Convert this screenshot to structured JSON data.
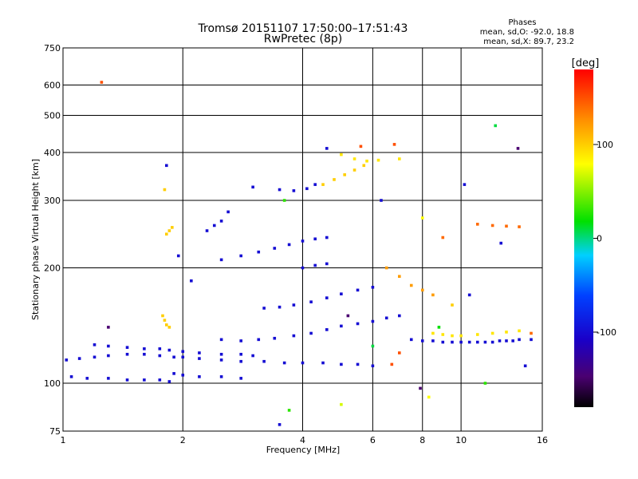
{
  "chart_data": {
    "type": "scatter",
    "title": "Tromsø 20151107 17:50:00–17:51:43",
    "subtitle": "RwPretec (8p)",
    "xlabel": "Frequency [MHz]",
    "ylabel": "Stationary phase Virtual Height [km]",
    "x_scale": "log",
    "y_scale": "log",
    "xlim": [
      1,
      16
    ],
    "ylim": [
      75,
      750
    ],
    "x_ticks": [
      1,
      2,
      4,
      6,
      8,
      10,
      16
    ],
    "y_ticks": [
      75,
      100,
      200,
      300,
      400,
      500,
      600,
      750
    ],
    "grid": true,
    "phase_stats": {
      "title": "Phases",
      "line_o": "mean, sd,O: -92.0, 18.8",
      "line_x": "mean, sd,X:  89.7, 23.2"
    },
    "colorbar": {
      "label": "[deg]",
      "range": [
        -180,
        180
      ],
      "ticks": [
        100,
        0,
        -100
      ],
      "colormap": "rainbow: black-purple-blue-cyan-green-yellow-orange-red"
    },
    "traces": [
      {
        "name": "",
        "phase": -100,
        "x": [
          1.02,
          1.1,
          1.2,
          1.3,
          1.45,
          1.6,
          1.75,
          1.9,
          2.0,
          2.2,
          2.5,
          2.8,
          3.2,
          3.6,
          4.0,
          4.5,
          5.0,
          5.5,
          6.0
        ],
        "y": [
          115,
          116,
          117,
          118,
          119,
          119,
          118,
          117,
          117,
          116,
          115,
          114,
          114,
          113,
          113,
          113,
          112,
          112,
          111
        ]
      },
      {
        "name": "",
        "phase": -100,
        "x": [
          1.05,
          1.15,
          1.3,
          1.45,
          1.6,
          1.75,
          1.85
        ],
        "y": [
          104,
          103,
          103,
          102,
          102,
          102,
          101
        ]
      },
      {
        "name": "",
        "phase": -100,
        "x": [
          1.2,
          1.3,
          1.45,
          1.6,
          1.75,
          1.85,
          2.0,
          2.2,
          2.5,
          2.8,
          3.0
        ],
        "y": [
          126,
          125,
          124,
          123,
          123,
          122,
          121,
          120,
          119,
          119,
          118
        ]
      },
      {
        "name": "",
        "phase": -100,
        "x": [
          1.9,
          2.0,
          2.2,
          2.5,
          2.8
        ],
        "y": [
          106,
          105,
          104,
          104,
          103
        ]
      },
      {
        "name": "",
        "phase": -100,
        "x": [
          2.5,
          2.8,
          3.1,
          3.4,
          3.8,
          4.2,
          4.6,
          5.0,
          5.5,
          6.0,
          6.5,
          7.0
        ],
        "y": [
          130,
          129,
          130,
          131,
          133,
          135,
          138,
          141,
          143,
          145,
          148,
          150
        ]
      },
      {
        "name": "",
        "phase": -100,
        "x": [
          3.2,
          3.5,
          3.8,
          4.2,
          4.6,
          5.0,
          5.5,
          6.0
        ],
        "y": [
          157,
          158,
          160,
          163,
          167,
          171,
          175,
          178
        ]
      },
      {
        "name": "",
        "phase": -100,
        "x": [
          2.5,
          2.8,
          3.1,
          3.4,
          3.7,
          4.0,
          4.3,
          4.6
        ],
        "y": [
          210,
          215,
          220,
          225,
          230,
          235,
          238,
          240
        ]
      },
      {
        "name": "",
        "phase": -100,
        "x": [
          4.0,
          4.3,
          4.6
        ],
        "y": [
          200,
          203,
          205
        ]
      },
      {
        "name": "",
        "phase": -100,
        "x": [
          3.5,
          3.8,
          4.1,
          4.3
        ],
        "y": [
          320,
          318,
          322,
          330
        ]
      },
      {
        "name": "",
        "phase": -100,
        "x": [
          7.5,
          8.0,
          8.5,
          9.0,
          9.5,
          10.0,
          10.5,
          11.0,
          11.5,
          12.0,
          12.5,
          13.0,
          13.5,
          14.0,
          15.0
        ],
        "y": [
          130,
          129,
          129,
          128,
          128,
          128,
          128,
          128,
          128,
          128,
          129,
          129,
          129,
          130,
          130
        ]
      },
      {
        "name": "",
        "phase": -100,
        "x": [
          2.3,
          2.4,
          2.5
        ],
        "y": [
          250,
          258,
          265
        ]
      },
      {
        "name": "",
        "phase": 100,
        "x": [
          4.5,
          4.8,
          5.1,
          5.4,
          5.7
        ],
        "y": [
          330,
          340,
          350,
          360,
          370
        ]
      },
      {
        "name": "",
        "phase": 100,
        "x": [
          1.78,
          1.8,
          1.82,
          1.85
        ],
        "y": [
          150,
          146,
          142,
          140
        ]
      },
      {
        "name": "",
        "phase": 100,
        "x": [
          1.82,
          1.85,
          1.88
        ],
        "y": [
          245,
          250,
          255
        ]
      },
      {
        "name": "",
        "phase": 120,
        "x": [
          6.5,
          7.0,
          7.5,
          8.0,
          8.5
        ],
        "y": [
          200,
          190,
          180,
          175,
          170
        ]
      },
      {
        "name": "",
        "phase": 90,
        "x": [
          8.5,
          9.0,
          9.5,
          10.0,
          11.0,
          12.0,
          13.0,
          14.0
        ],
        "y": [
          135,
          134,
          133,
          133,
          134,
          135,
          136,
          137
        ]
      },
      {
        "name": "",
        "phase": 140,
        "x": [
          11.0,
          12.0,
          13.0,
          14.0
        ],
        "y": [
          260,
          258,
          257,
          256
        ]
      },
      {
        "name": "",
        "phase": 90,
        "x": [
          5.0,
          5.4,
          5.8,
          6.2,
          7.0
        ],
        "y": [
          395,
          385,
          380,
          382,
          385
        ]
      }
    ],
    "scatter_points": [
      {
        "x": 1.25,
        "y": 610,
        "phase": 150
      },
      {
        "x": 1.82,
        "y": 370,
        "phase": -100
      },
      {
        "x": 3.0,
        "y": 325,
        "phase": -100
      },
      {
        "x": 13.9,
        "y": 410,
        "phase": -150
      },
      {
        "x": 12.2,
        "y": 470,
        "phase": 10
      },
      {
        "x": 10.2,
        "y": 330,
        "phase": -100
      },
      {
        "x": 4.6,
        "y": 410,
        "phase": -100
      },
      {
        "x": 5.6,
        "y": 415,
        "phase": 150
      },
      {
        "x": 6.8,
        "y": 420,
        "phase": 150
      },
      {
        "x": 3.5,
        "y": 78,
        "phase": -100
      },
      {
        "x": 3.7,
        "y": 85,
        "phase": 30
      },
      {
        "x": 5.0,
        "y": 88,
        "phase": 70
      },
      {
        "x": 7.9,
        "y": 97,
        "phase": -150
      },
      {
        "x": 8.3,
        "y": 92,
        "phase": 80
      },
      {
        "x": 11.5,
        "y": 100,
        "phase": 30
      },
      {
        "x": 14.5,
        "y": 111,
        "phase": -100
      },
      {
        "x": 1.3,
        "y": 140,
        "phase": -150
      },
      {
        "x": 2.6,
        "y": 280,
        "phase": -100
      },
      {
        "x": 3.6,
        "y": 300,
        "phase": 30
      },
      {
        "x": 6.3,
        "y": 300,
        "phase": -100
      },
      {
        "x": 8.0,
        "y": 270,
        "phase": 80
      },
      {
        "x": 9.0,
        "y": 240,
        "phase": 140
      },
      {
        "x": 10.5,
        "y": 170,
        "phase": -100
      },
      {
        "x": 9.5,
        "y": 160,
        "phase": 100
      },
      {
        "x": 7.0,
        "y": 120,
        "phase": 150
      },
      {
        "x": 6.0,
        "y": 125,
        "phase": 10
      },
      {
        "x": 5.2,
        "y": 150,
        "phase": -150
      },
      {
        "x": 2.1,
        "y": 185,
        "phase": -100
      },
      {
        "x": 1.95,
        "y": 215,
        "phase": -100
      },
      {
        "x": 1.8,
        "y": 320,
        "phase": 100
      },
      {
        "x": 6.7,
        "y": 112,
        "phase": 150
      },
      {
        "x": 8.8,
        "y": 140,
        "phase": 20
      },
      {
        "x": 12.6,
        "y": 232,
        "phase": -100
      },
      {
        "x": 15.0,
        "y": 135,
        "phase": 140
      }
    ]
  }
}
